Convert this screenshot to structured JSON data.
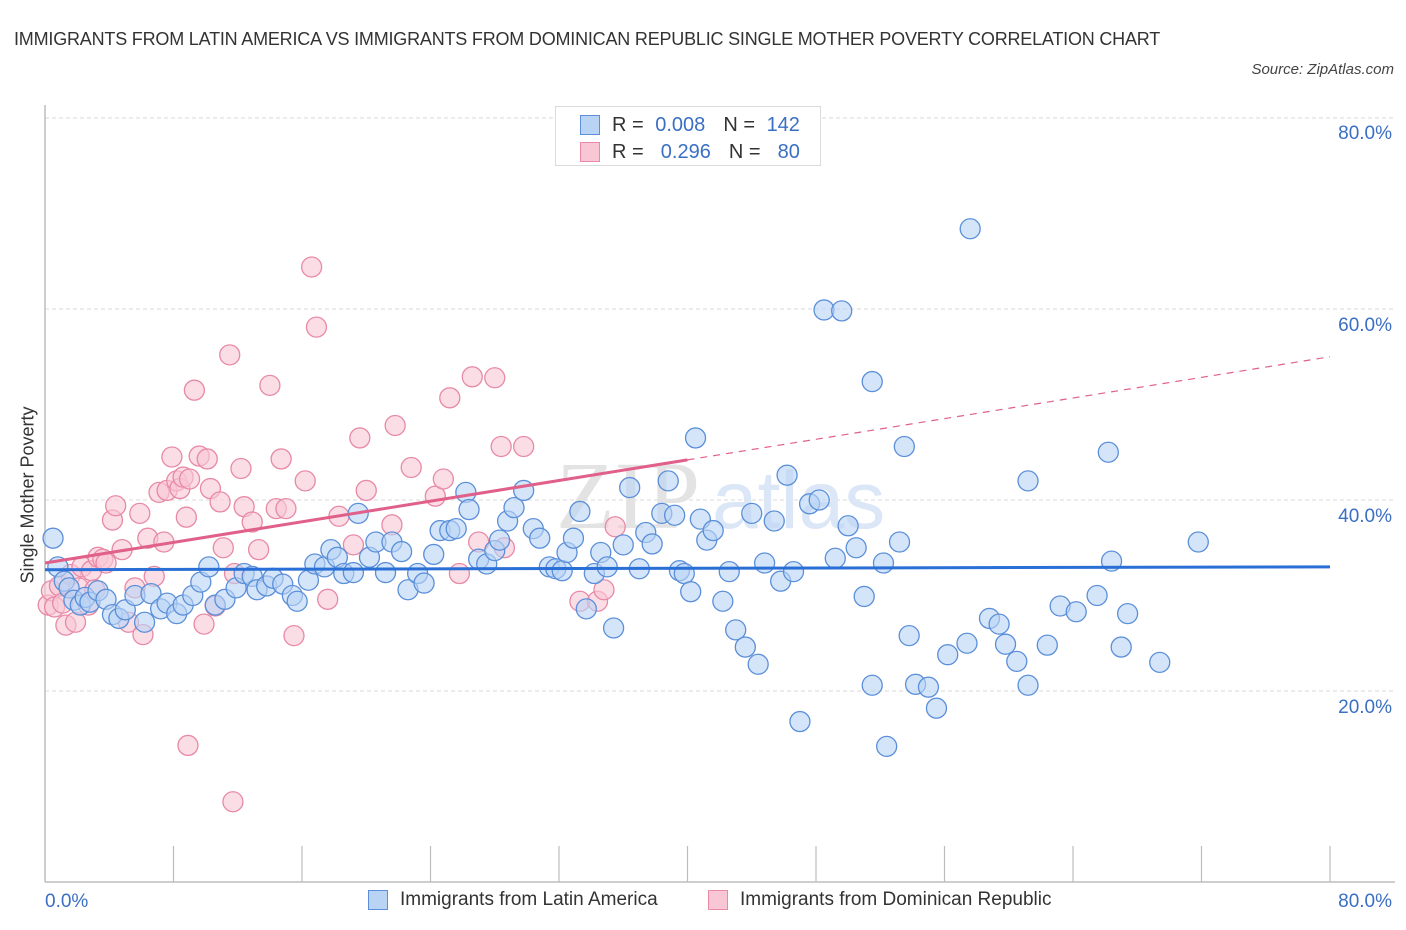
{
  "title": "IMMIGRANTS FROM LATIN AMERICA VS IMMIGRANTS FROM DOMINICAN REPUBLIC SINGLE MOTHER POVERTY CORRELATION CHART",
  "source": "Source: ZipAtlas.com",
  "watermark": {
    "zip": "ZIP",
    "atlas": "atlas"
  },
  "colors": {
    "blue_fill": "#b9d3f5",
    "blue_stroke": "#5b8fd9",
    "blue_line": "#2a6fd6",
    "pink_fill": "#f9c6d6",
    "pink_stroke": "#e889a6",
    "pink_line": "#e0608a",
    "axis_text": "#3a6fc4",
    "grid": "#d9d9d9"
  },
  "legend": {
    "rows": [
      {
        "r_label": "R = ",
        "r_value": "0.008",
        "n_label": "N = ",
        "n_value": "142"
      },
      {
        "r_label": "R = ",
        "r_value": " 0.296",
        "n_label": "N = ",
        "n_value": " 80"
      }
    ]
  },
  "chart_data": {
    "type": "scatter",
    "title": "IMMIGRANTS FROM LATIN AMERICA VS IMMIGRANTS FROM DOMINICAN REPUBLIC SINGLE MOTHER POVERTY CORRELATION CHART",
    "xlabel": "",
    "ylabel": "Single Mother Poverty",
    "xlim": [
      0,
      80
    ],
    "ylim": [
      0,
      80
    ],
    "x_tick_labels": [
      "0.0%",
      "80.0%"
    ],
    "y_tick_labels": [
      "20.0%",
      "40.0%",
      "60.0%",
      "80.0%"
    ],
    "y_ticks": [
      20,
      40,
      60,
      80
    ],
    "x_ticks_minor": [
      0,
      8,
      16,
      24,
      32,
      40,
      48,
      56,
      64,
      72,
      80
    ],
    "grid": true,
    "legend_position": "top-center",
    "series": [
      {
        "name": "Immigrants from Latin America",
        "R": 0.008,
        "N": 142,
        "trend": {
          "x": [
            0,
            80
          ],
          "y": [
            32.7,
            33.0
          ],
          "style": "solid"
        },
        "points": [
          [
            0.5,
            36.0
          ],
          [
            0.8,
            33.0
          ],
          [
            1.2,
            31.5
          ],
          [
            1.5,
            30.8
          ],
          [
            1.8,
            29.5
          ],
          [
            2.2,
            29.0
          ],
          [
            2.5,
            29.8
          ],
          [
            2.8,
            29.3
          ],
          [
            3.3,
            30.5
          ],
          [
            3.8,
            29.6
          ],
          [
            4.2,
            28.0
          ],
          [
            4.6,
            27.6
          ],
          [
            5.0,
            28.5
          ],
          [
            5.6,
            30.0
          ],
          [
            6.2,
            27.2
          ],
          [
            6.6,
            30.2
          ],
          [
            7.2,
            28.6
          ],
          [
            7.6,
            29.2
          ],
          [
            8.2,
            28.1
          ],
          [
            8.6,
            29.0
          ],
          [
            9.2,
            30.0
          ],
          [
            9.7,
            31.4
          ],
          [
            10.2,
            33.0
          ],
          [
            10.6,
            29.0
          ],
          [
            11.2,
            29.6
          ],
          [
            11.9,
            30.8
          ],
          [
            12.4,
            32.3
          ],
          [
            12.9,
            32.0
          ],
          [
            13.2,
            30.6
          ],
          [
            13.8,
            31.0
          ],
          [
            14.2,
            31.8
          ],
          [
            14.8,
            31.2
          ],
          [
            15.4,
            30.0
          ],
          [
            15.7,
            29.4
          ],
          [
            16.4,
            31.6
          ],
          [
            16.8,
            33.3
          ],
          [
            17.4,
            33.0
          ],
          [
            17.8,
            34.8
          ],
          [
            18.2,
            34.0
          ],
          [
            18.6,
            32.3
          ],
          [
            19.2,
            32.4
          ],
          [
            19.5,
            38.6
          ],
          [
            20.2,
            34.0
          ],
          [
            20.6,
            35.6
          ],
          [
            21.2,
            32.4
          ],
          [
            21.6,
            35.6
          ],
          [
            22.2,
            34.6
          ],
          [
            22.6,
            30.6
          ],
          [
            23.2,
            32.3
          ],
          [
            23.6,
            31.3
          ],
          [
            24.2,
            34.3
          ],
          [
            24.6,
            36.8
          ],
          [
            25.2,
            36.8
          ],
          [
            25.6,
            37.0
          ],
          [
            26.2,
            40.8
          ],
          [
            26.4,
            39.0
          ],
          [
            27.0,
            33.8
          ],
          [
            27.5,
            33.3
          ],
          [
            28.0,
            34.7
          ],
          [
            28.3,
            35.8
          ],
          [
            28.8,
            37.8
          ],
          [
            29.2,
            39.2
          ],
          [
            29.8,
            41.0
          ],
          [
            30.4,
            37.0
          ],
          [
            30.8,
            36.0
          ],
          [
            31.4,
            33.0
          ],
          [
            31.8,
            32.8
          ],
          [
            32.2,
            32.6
          ],
          [
            32.5,
            34.5
          ],
          [
            32.9,
            36.0
          ],
          [
            33.3,
            38.8
          ],
          [
            33.7,
            28.6
          ],
          [
            34.2,
            32.3
          ],
          [
            34.6,
            34.5
          ],
          [
            35.0,
            33.0
          ],
          [
            35.4,
            26.6
          ],
          [
            36.0,
            35.3
          ],
          [
            36.4,
            41.3
          ],
          [
            37.0,
            32.8
          ],
          [
            37.4,
            36.6
          ],
          [
            37.8,
            35.4
          ],
          [
            38.4,
            38.6
          ],
          [
            38.8,
            42.0
          ],
          [
            39.2,
            38.4
          ],
          [
            39.5,
            32.6
          ],
          [
            39.8,
            32.3
          ],
          [
            40.2,
            30.4
          ],
          [
            40.5,
            46.5
          ],
          [
            40.8,
            38.0
          ],
          [
            41.2,
            35.8
          ],
          [
            41.6,
            36.8
          ],
          [
            42.2,
            29.4
          ],
          [
            42.6,
            32.5
          ],
          [
            43.0,
            26.4
          ],
          [
            43.6,
            24.6
          ],
          [
            44.0,
            38.6
          ],
          [
            44.4,
            22.8
          ],
          [
            44.8,
            33.4
          ],
          [
            45.4,
            37.8
          ],
          [
            45.8,
            31.5
          ],
          [
            46.2,
            42.6
          ],
          [
            46.6,
            32.5
          ],
          [
            47.0,
            16.8
          ],
          [
            47.6,
            39.6
          ],
          [
            48.2,
            40.0
          ],
          [
            48.5,
            59.9
          ],
          [
            49.2,
            33.9
          ],
          [
            49.6,
            59.8
          ],
          [
            50.0,
            37.3
          ],
          [
            50.5,
            35.0
          ],
          [
            51.0,
            29.9
          ],
          [
            51.5,
            52.4
          ],
          [
            51.5,
            20.6
          ],
          [
            52.2,
            33.4
          ],
          [
            52.4,
            14.2
          ],
          [
            53.2,
            35.6
          ],
          [
            53.5,
            45.6
          ],
          [
            53.8,
            25.8
          ],
          [
            54.2,
            20.7
          ],
          [
            55.0,
            20.4
          ],
          [
            55.5,
            18.2
          ],
          [
            56.2,
            23.8
          ],
          [
            57.4,
            25.0
          ],
          [
            57.6,
            68.4
          ],
          [
            58.8,
            27.6
          ],
          [
            59.4,
            27.0
          ],
          [
            59.8,
            24.9
          ],
          [
            60.5,
            23.1
          ],
          [
            61.2,
            42.0
          ],
          [
            61.2,
            20.6
          ],
          [
            62.4,
            24.8
          ],
          [
            63.2,
            28.9
          ],
          [
            64.2,
            28.3
          ],
          [
            65.5,
            30.0
          ],
          [
            66.2,
            45.0
          ],
          [
            66.4,
            33.6
          ],
          [
            67.0,
            24.6
          ],
          [
            67.4,
            28.1
          ],
          [
            69.4,
            23.0
          ],
          [
            71.8,
            35.6
          ]
        ]
      },
      {
        "name": "Immigrants from Dominican Republic",
        "R": 0.296,
        "N": 80,
        "trend": {
          "x": [
            0,
            40
          ],
          "y": [
            33.4,
            44.2
          ],
          "dashed_extension": {
            "x": [
              40,
              80
            ],
            "y": [
              44.2,
              55.0
            ]
          }
        },
        "points": [
          [
            0.2,
            29.0
          ],
          [
            0.4,
            30.5
          ],
          [
            0.6,
            28.8
          ],
          [
            0.9,
            31.0
          ],
          [
            1.1,
            29.2
          ],
          [
            1.3,
            26.9
          ],
          [
            1.6,
            32.2
          ],
          [
            1.9,
            27.2
          ],
          [
            2.1,
            30.8
          ],
          [
            2.3,
            33.0
          ],
          [
            2.7,
            29.0
          ],
          [
            2.9,
            32.6
          ],
          [
            3.1,
            30.6
          ],
          [
            3.3,
            34.0
          ],
          [
            3.6,
            33.8
          ],
          [
            3.8,
            33.4
          ],
          [
            4.2,
            37.9
          ],
          [
            4.4,
            39.4
          ],
          [
            4.8,
            34.8
          ],
          [
            5.2,
            27.2
          ],
          [
            5.6,
            30.8
          ],
          [
            5.9,
            38.6
          ],
          [
            6.1,
            25.9
          ],
          [
            6.4,
            36.0
          ],
          [
            6.8,
            32.0
          ],
          [
            7.1,
            40.8
          ],
          [
            7.4,
            35.6
          ],
          [
            7.6,
            41.0
          ],
          [
            7.9,
            44.5
          ],
          [
            8.2,
            42.0
          ],
          [
            8.4,
            41.2
          ],
          [
            8.6,
            42.4
          ],
          [
            8.8,
            38.2
          ],
          [
            9.0,
            42.2
          ],
          [
            9.3,
            51.5
          ],
          [
            9.6,
            44.6
          ],
          [
            9.9,
            27.0
          ],
          [
            10.1,
            44.3
          ],
          [
            10.3,
            41.2
          ],
          [
            10.6,
            28.9
          ],
          [
            10.9,
            39.8
          ],
          [
            11.1,
            35.0
          ],
          [
            11.5,
            55.2
          ],
          [
            11.7,
            8.4
          ],
          [
            11.8,
            32.3
          ],
          [
            12.2,
            43.3
          ],
          [
            12.4,
            39.3
          ],
          [
            12.9,
            37.7
          ],
          [
            13.3,
            34.8
          ],
          [
            14.0,
            52.0
          ],
          [
            14.4,
            39.1
          ],
          [
            14.7,
            44.3
          ],
          [
            15.0,
            39.1
          ],
          [
            15.5,
            25.8
          ],
          [
            16.2,
            42.0
          ],
          [
            16.6,
            64.4
          ],
          [
            16.9,
            58.1
          ],
          [
            17.6,
            29.6
          ],
          [
            18.3,
            38.3
          ],
          [
            19.2,
            35.3
          ],
          [
            19.6,
            46.5
          ],
          [
            20.0,
            41.0
          ],
          [
            21.6,
            37.4
          ],
          [
            21.8,
            47.8
          ],
          [
            22.8,
            43.4
          ],
          [
            24.3,
            40.4
          ],
          [
            24.8,
            42.2
          ],
          [
            25.2,
            50.7
          ],
          [
            25.8,
            32.3
          ],
          [
            26.6,
            52.9
          ],
          [
            27.0,
            35.6
          ],
          [
            28.0,
            52.8
          ],
          [
            28.4,
            45.6
          ],
          [
            28.6,
            35.0
          ],
          [
            29.8,
            45.6
          ],
          [
            33.3,
            29.4
          ],
          [
            34.4,
            29.4
          ],
          [
            34.8,
            30.6
          ],
          [
            35.5,
            37.2
          ],
          [
            8.9,
            14.3
          ]
        ]
      }
    ]
  },
  "axis": {
    "x_min_label": "0.0%",
    "x_max_label": "80.0%",
    "y_labels": [
      "80.0%",
      "60.0%",
      "40.0%",
      "20.0%"
    ],
    "ylabel": "Single Mother Poverty"
  },
  "bottom_legend": [
    {
      "label": "Immigrants from Latin America"
    },
    {
      "label": "Immigrants from Dominican Republic"
    }
  ]
}
